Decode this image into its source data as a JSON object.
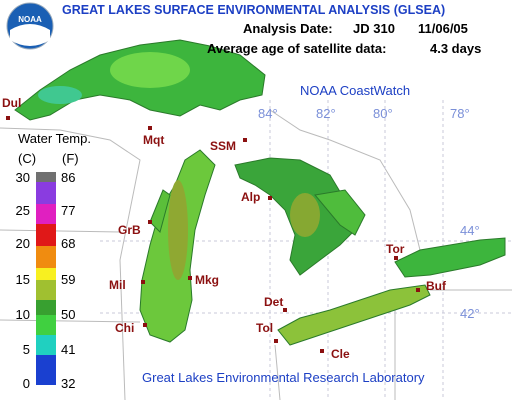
{
  "header": {
    "logo": "NOAA",
    "title": "GREAT LAKES SURFACE ENVIRONMENTAL ANALYSIS (GLSEA)",
    "analysis_date_label": "Analysis Date:",
    "julian_day": "JD 310",
    "date": "11/06/05",
    "age_label": "Average age of satellite data:",
    "age": "4.3 days",
    "source": "NOAA CoastWatch"
  },
  "legend": {
    "title": "Water Temp.",
    "celsius_unit": "(C)",
    "fahrenheit_unit": "(F)",
    "celsius": [
      30,
      25,
      20,
      15,
      10,
      5,
      0
    ],
    "fahrenheit": [
      86,
      77,
      68,
      59,
      50,
      41,
      32
    ]
  },
  "graticule": {
    "longitudes": [
      "84°",
      "82°",
      "80°",
      "78°"
    ],
    "latitudes": [
      "44°",
      "42°"
    ]
  },
  "cities": [
    "Dul",
    "Mqt",
    "SSM",
    "GrB",
    "Alp",
    "Mil",
    "Mkg",
    "Chi",
    "Det",
    "Tol",
    "Cle",
    "Tor",
    "Buf"
  ],
  "footer": "Great Lakes Environmental Research Laboratory"
}
